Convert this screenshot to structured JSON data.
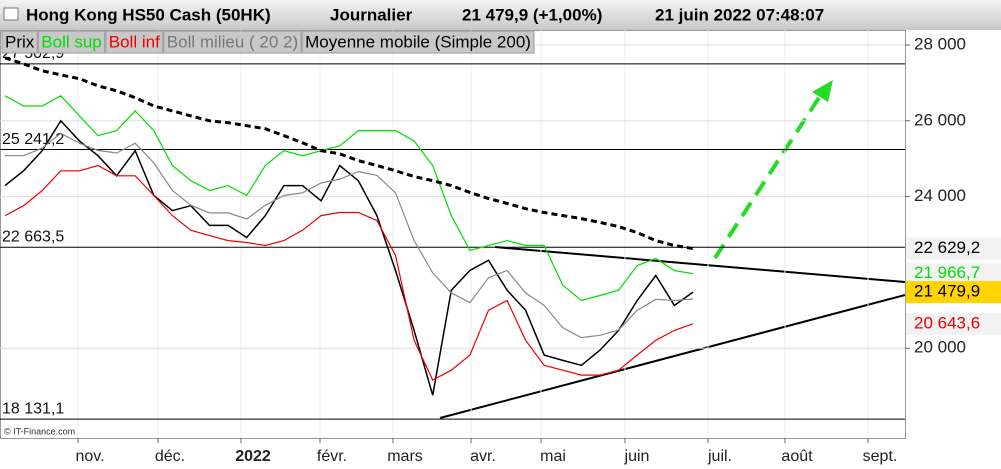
{
  "chart_data": {
    "type": "line",
    "title": "Hong Kong HS50 Cash (50HK)",
    "period": "Journalier",
    "last_quote": "21 479,9 (+1,00%)",
    "timestamp": "21 juin 2022 07:48:07",
    "credit": "© IT-Finance.com",
    "legend": [
      {
        "text": "Prix",
        "color": "#000000"
      },
      {
        "text": "Boll sup",
        "color": "#00dd00"
      },
      {
        "text": "Boll inf",
        "color": "#ee0000"
      },
      {
        "text": "Boll milieu ( 20 2)",
        "color": "#777777"
      },
      {
        "text": "Moyenne mobile (Simple 200)",
        "color": "#000000"
      }
    ],
    "x_labels": [
      "nov.",
      "déc.",
      "2022",
      "févr.",
      "mars",
      "avr.",
      "mai",
      "juin",
      "juil.",
      "août",
      "sept."
    ],
    "ylim": [
      17632,
      28395
    ],
    "yticks": [
      {
        "value": 28000,
        "label": "28 000"
      },
      {
        "value": 26000,
        "label": "26 000"
      },
      {
        "value": 24000,
        "label": "24 000"
      },
      {
        "value": 20000,
        "label": "20 000"
      }
    ],
    "levels": [
      {
        "value": 27502.9,
        "label": "27 502,9"
      },
      {
        "value": 25241.2,
        "label": "25 241,2"
      },
      {
        "value": 22663.5,
        "label": "22 663,5"
      },
      {
        "value": 18131.1,
        "label": "18 131,1"
      }
    ],
    "series": [
      {
        "name": "Prix",
        "color": "#000000",
        "last_label": "21 479,9",
        "values": [
          24290,
          24680,
          25210,
          26000,
          25470,
          25080,
          24550,
          25210,
          24030,
          23630,
          23760,
          23240,
          23240,
          22920,
          23500,
          24290,
          24290,
          23890,
          24820,
          24420,
          23500,
          22050,
          20470,
          18760,
          21530,
          22050,
          22320,
          21530,
          21000,
          19820,
          19680,
          19550,
          19950,
          20470,
          21260,
          21920,
          21130,
          21479.9
        ]
      },
      {
        "name": "Boll sup",
        "color": "#00dd00",
        "last_label": "21 966,7",
        "values": [
          26660,
          26390,
          26390,
          26660,
          26130,
          25610,
          25740,
          26260,
          25740,
          24820,
          24420,
          24160,
          24290,
          24030,
          24820,
          25210,
          25080,
          25210,
          25340,
          25740,
          25740,
          25740,
          25470,
          24820,
          23500,
          22580,
          22710,
          22840,
          22710,
          22710,
          21660,
          21260,
          21390,
          21530,
          22180,
          22370,
          22050,
          21966.7
        ]
      },
      {
        "name": "Boll inf",
        "color": "#ee0000",
        "last_label": "20 643,6",
        "values": [
          23500,
          23760,
          24160,
          24680,
          24680,
          24820,
          24550,
          24550,
          24030,
          23500,
          23110,
          22970,
          22840,
          22790,
          22710,
          22840,
          23110,
          23500,
          23580,
          23580,
          23370,
          22450,
          20210,
          19160,
          19420,
          19820,
          21000,
          21260,
          20210,
          19550,
          19420,
          19290,
          19290,
          19420,
          19820,
          20210,
          20470,
          20643.6
        ]
      },
      {
        "name": "Boll milieu ( 20 2)",
        "color": "#888888",
        "values": [
          25080,
          25080,
          25280,
          25670,
          25410,
          25220,
          25150,
          25410,
          24890,
          24160,
          23770,
          23570,
          23570,
          23410,
          23770,
          24030,
          24100,
          24360,
          24460,
          24660,
          24560,
          24100,
          22840,
          21990,
          21460,
          21200,
          21860,
          22050,
          21460,
          21130,
          20540,
          20280,
          20340,
          20480,
          21000,
          21290,
          21260,
          21300
        ]
      },
      {
        "name": "Moyenne mobile (Simple 200)",
        "color": "#000000",
        "dashed": true,
        "last_label": "22 629,2",
        "values": [
          27660,
          27500,
          27320,
          27210,
          27110,
          26920,
          26790,
          26610,
          26390,
          26260,
          26130,
          26000,
          25950,
          25870,
          25790,
          25610,
          25420,
          25210,
          25130,
          24950,
          24820,
          24680,
          24530,
          24420,
          24290,
          24110,
          23950,
          23820,
          23680,
          23580,
          23500,
          23420,
          23320,
          23210,
          23050,
          22840,
          22710,
          22629.2
        ]
      }
    ]
  }
}
